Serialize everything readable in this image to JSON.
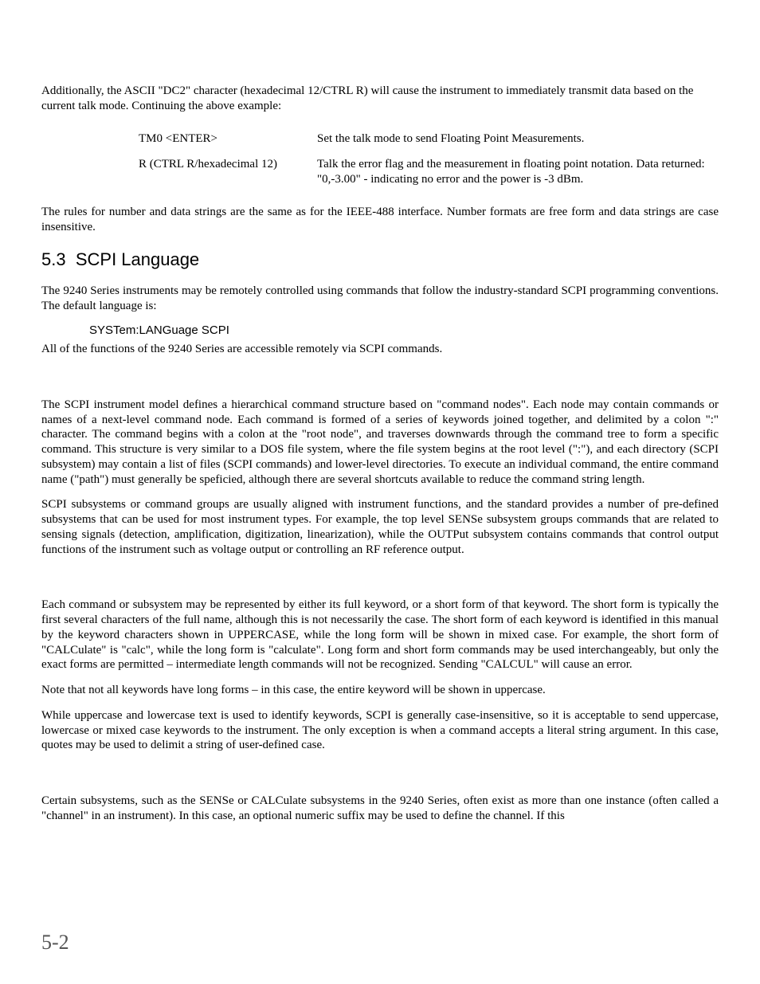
{
  "intro": "Additionally, the ASCII \"DC2\" character (hexadecimal 12/CTRL R) will cause the instrument to immediately transmit data based on the current talk mode. Continuing the above example:",
  "cmdRows": [
    {
      "cmd": "TM0 <ENTER>",
      "desc": "Set the talk mode to send Floating Point Measurements."
    },
    {
      "cmd": "R (CTRL R/hexadecimal 12)",
      "desc": "Talk the error flag and the measurement in floating point notation. Data returned:  \"0,-3.00\"  - indicating no error and the power is -3 dBm."
    }
  ],
  "afterTable": "The rules for number and data strings are the same as for the IEEE-488 interface. Number formats are free form and data strings are case insensitive.",
  "sectionNumber": "5.3",
  "sectionTitle": "SCPI Language",
  "scpiIntro": "The 9240 Series instruments may be remotely controlled using commands that follow the industry-standard SCPI programming conventions. The default language is:",
  "sysCommand": "SYSTem:LANGuage SCPI",
  "scpiAccessible": "All of the functions of the 9240 Series are accessible remotely via SCPI commands.",
  "paraHierarchy": "The SCPI instrument model defines a hierarchical command structure based on \"command nodes\".  Each node may contain commands or names of a next-level command node.  Each command is formed of a series of keywords joined together, and delimited by a colon \":\" character.  The command begins with a colon at the \"root node\", and traverses downwards through the command tree to form a specific command.  This structure is very similar to a DOS file system, where the file system begins at the root level (\":\"), and each directory (SCPI subsystem) may contain a list of files (SCPI commands) and lower-level directories.  To execute an individual command, the entire command name (\"path\") must generally be speficied, although there are several shortcuts available to reduce the command string length.",
  "paraSubsystems": "SCPI subsystems or command groups are usually aligned with instrument functions, and the standard provides a number of pre-defined subsystems that can be used for most instrument types.  For example, the top level SENSe subsystem groups commands that are related to sensing signals (detection, amplification, digitization, linearization), while the OUTPut subsystem contains commands that control output functions of the instrument such as voltage output or controlling an RF reference output.",
  "paraShortForm": "Each command or subsystem may be represented by either its full keyword, or a short form of that keyword.  The short form is typically the first several characters of the full name, although this is not necessarily the case.  The short form of each keyword is identified in this manual by the keyword characters shown in UPPERCASE, while the long form will be shown in mixed case.  For example, the short form of \"CALCulate\" is \"calc\", while the long form is \"calculate\". Long form and short form commands may be used interchangeably, but only the exact forms are permitted – intermediate length commands will not be recognized.  Sending \"CALCUL\" will cause an error.",
  "paraNoLong": "Note that not all keywords have long forms – in this case, the entire keyword will be shown in uppercase.",
  "paraCase": "While uppercase and lowercase text is used to identify keywords, SCPI is generally case-insensitive, so it is acceptable to send uppercase, lowercase or mixed case keywords to the instrument.  The only exception is when a command accepts a literal string argument.  In this case, quotes may be used to delimit a string of user-defined case.",
  "paraChannels": "Certain subsystems, such as the SENSe or CALCulate subsystems in the 9240 Series, often exist as more than one instance (often called a \"channel\" in an instrument).  In this case, an optional numeric suffix may be used to define the channel.  If this",
  "pageNumber": "5-2"
}
